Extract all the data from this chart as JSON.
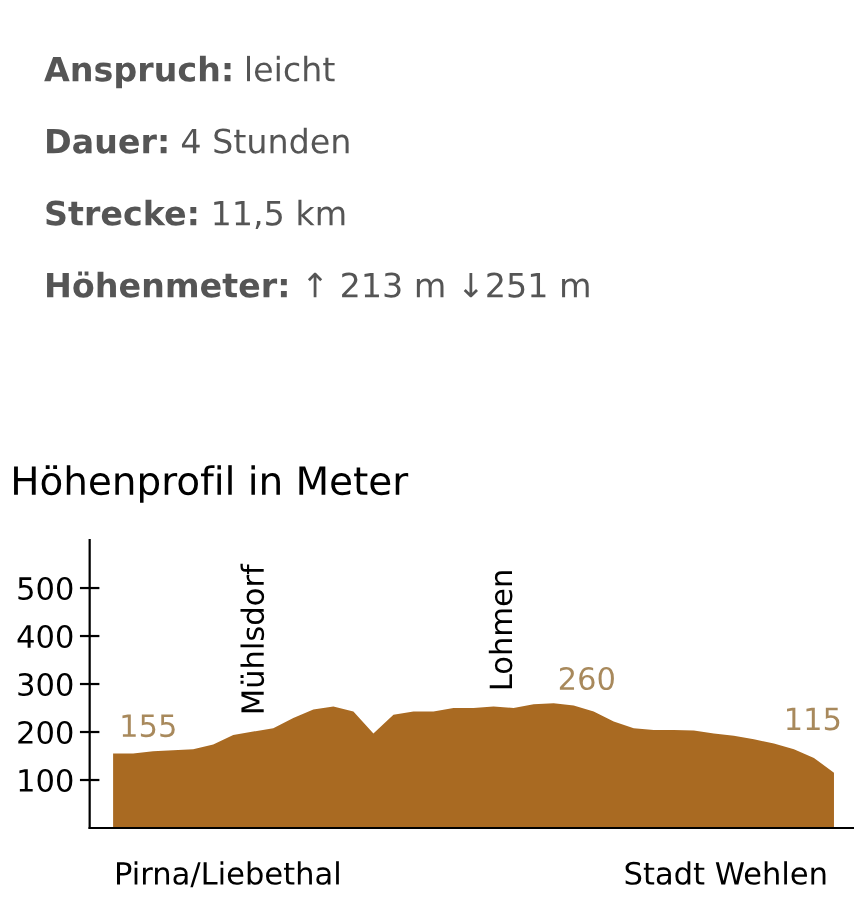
{
  "chart_data": {
    "type": "area",
    "title": "Höhenprofil in Meter",
    "annotations": [
      "Anspruch: leicht",
      "Dauer: 4 Stunden",
      "Strecke: 11,5 km",
      "Höhenmeter: ↑ 213 m ↓251 m",
      "Mühlsdorf",
      "Lohmen",
      "Pirna/Liebethal",
      "Stadt Wehlen"
    ],
    "categories": [
      null,
      null,
      null,
      null,
      null,
      null,
      null,
      null,
      null,
      null,
      null,
      null,
      null,
      null,
      null,
      null,
      null,
      null,
      null,
      null,
      null,
      null,
      null,
      null,
      null,
      null,
      null,
      null,
      null,
      null,
      null,
      null,
      null,
      null,
      null,
      null,
      null
    ],
    "series": [
      {
        "color": "#a96a22",
        "values": [
          155,
          155,
          160,
          162,
          164,
          174,
          194,
          201,
          208,
          229,
          247,
          253,
          243,
          197,
          236,
          243,
          243,
          250,
          250,
          253,
          250,
          258,
          260,
          255,
          243,
          222,
          208,
          204,
          204,
          203,
          197,
          192,
          185,
          176,
          164,
          146,
          115
        ],
        "value_labels": [
          "155",
          null,
          null,
          null,
          null,
          null,
          null,
          null,
          null,
          null,
          null,
          null,
          null,
          null,
          null,
          null,
          null,
          null,
          null,
          null,
          null,
          null,
          "260",
          null,
          null,
          null,
          null,
          null,
          null,
          null,
          null,
          null,
          null,
          null,
          null,
          null,
          "115"
        ]
      }
    ],
    "ylim": [
      0,
      600
    ],
    "yticks": [
      100,
      200,
      300,
      400,
      500
    ],
    "grid": false,
    "legend": false
  }
}
